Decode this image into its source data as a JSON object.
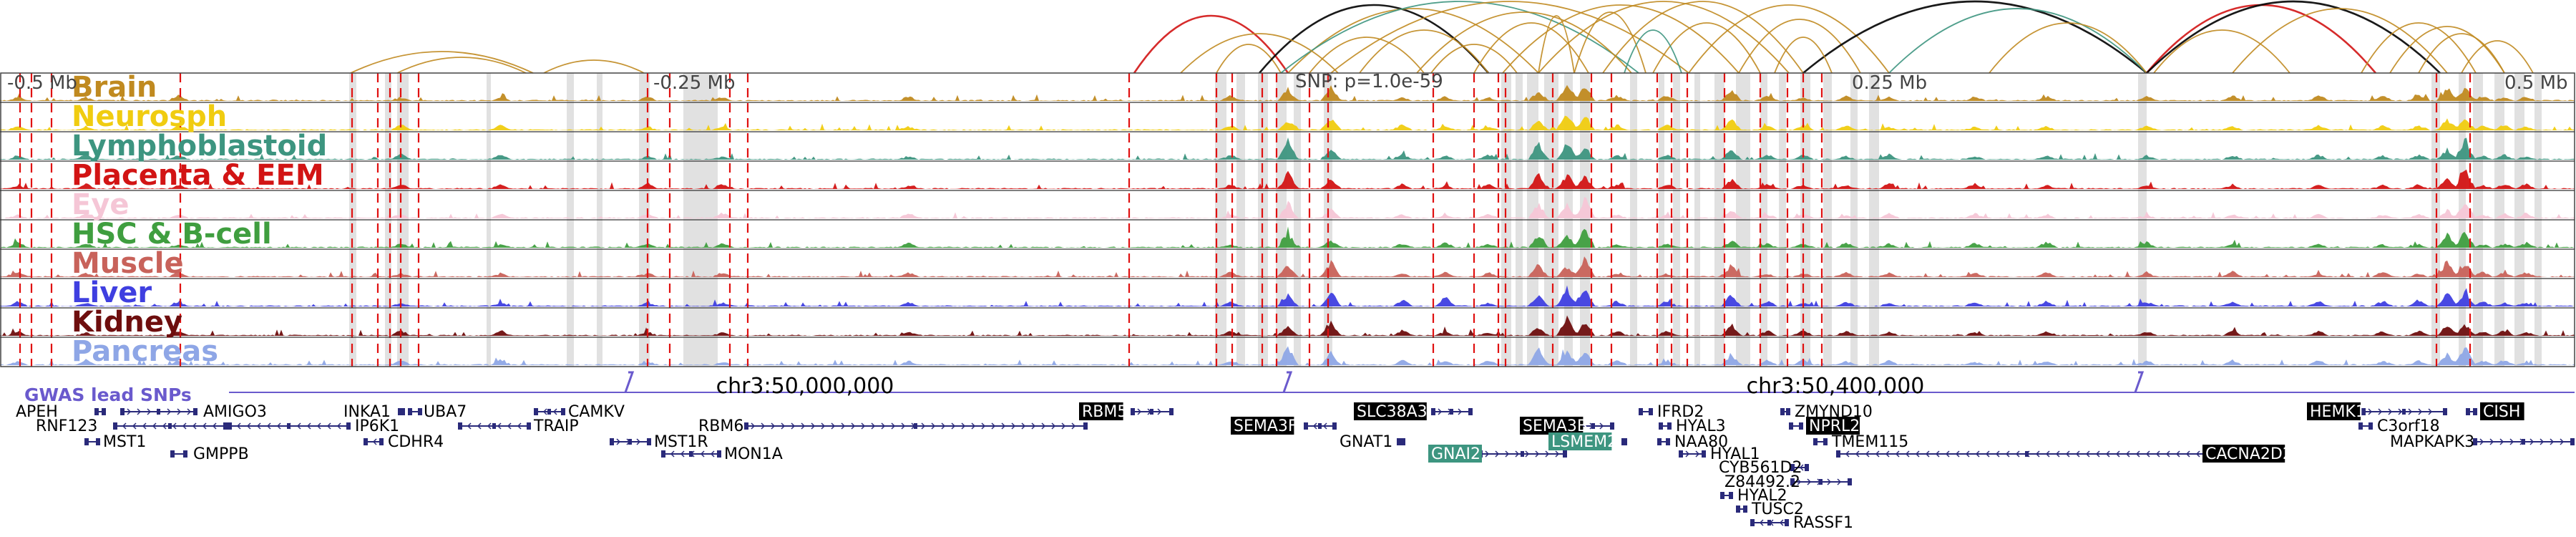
{
  "axis": {
    "top_ticks": [
      "-0.5 Mb",
      "-0.25 Mb",
      "0.25 Mb",
      "0.5 Mb"
    ],
    "snp_label": "SNP: p=1.0e-59",
    "chr_labels": [
      "chr3:50,000,000",
      "chr3:50,400,000"
    ]
  },
  "tracks": [
    {
      "name": "Brain",
      "color": "#c08a20"
    },
    {
      "name": "Neurosph",
      "color": "#f0cc10"
    },
    {
      "name": "Lymphoblastoid",
      "color": "#3d9580"
    },
    {
      "name": "Placenta & EEM",
      "color": "#d21414"
    },
    {
      "name": "Eye",
      "color": "#f5c6d6"
    },
    {
      "name": "HSC & B-cell",
      "color": "#3f9e3f"
    },
    {
      "name": "Muscle",
      "color": "#c8625a"
    },
    {
      "name": "Liver",
      "color": "#3f3fe0"
    },
    {
      "name": "Kidney",
      "color": "#6e0e0e"
    },
    {
      "name": "Pancreas",
      "color": "#8ea6e6"
    }
  ],
  "gwas": {
    "title": "GWAS lead SNPs",
    "color": "#6a5acd"
  },
  "genes": [
    {
      "name": "APEH",
      "highlight": ""
    },
    {
      "name": "RNF123",
      "highlight": ""
    },
    {
      "name": "MST1",
      "highlight": ""
    },
    {
      "name": "AMIGO3",
      "highlight": ""
    },
    {
      "name": "GMPPB",
      "highlight": ""
    },
    {
      "name": "INKA1",
      "highlight": ""
    },
    {
      "name": "IP6K1",
      "highlight": ""
    },
    {
      "name": "UBA7",
      "highlight": ""
    },
    {
      "name": "CDHR4",
      "highlight": ""
    },
    {
      "name": "CAMKV",
      "highlight": ""
    },
    {
      "name": "TRAIP",
      "highlight": ""
    },
    {
      "name": "MST1R",
      "highlight": ""
    },
    {
      "name": "RBM6",
      "highlight": ""
    },
    {
      "name": "MON1A",
      "highlight": ""
    },
    {
      "name": "RBM5",
      "highlight": "black"
    },
    {
      "name": "SEMA3F",
      "highlight": "black"
    },
    {
      "name": "SLC38A3",
      "highlight": "black"
    },
    {
      "name": "GNAT1",
      "highlight": ""
    },
    {
      "name": "GNAI2",
      "highlight": "teal"
    },
    {
      "name": "SEMA3B",
      "highlight": "black"
    },
    {
      "name": "LSMEM2",
      "highlight": "teal"
    },
    {
      "name": "IFRD2",
      "highlight": ""
    },
    {
      "name": "HYAL3",
      "highlight": ""
    },
    {
      "name": "NAA80",
      "highlight": ""
    },
    {
      "name": "HYAL1",
      "highlight": ""
    },
    {
      "name": "CYB561D2",
      "highlight": ""
    },
    {
      "name": "Z84492.2",
      "highlight": ""
    },
    {
      "name": "HYAL2",
      "highlight": ""
    },
    {
      "name": "TUSC2",
      "highlight": ""
    },
    {
      "name": "RASSF1",
      "highlight": ""
    },
    {
      "name": "ZMYND10",
      "highlight": ""
    },
    {
      "name": "NPRL2",
      "highlight": "black"
    },
    {
      "name": "TMEM115",
      "highlight": ""
    },
    {
      "name": "CACNA2D2",
      "highlight": "black"
    },
    {
      "name": "HEMK1",
      "highlight": "black"
    },
    {
      "name": "CISH",
      "highlight": "black"
    },
    {
      "name": "C3orf18",
      "highlight": ""
    },
    {
      "name": "MAPKAPK3",
      "highlight": ""
    }
  ]
}
